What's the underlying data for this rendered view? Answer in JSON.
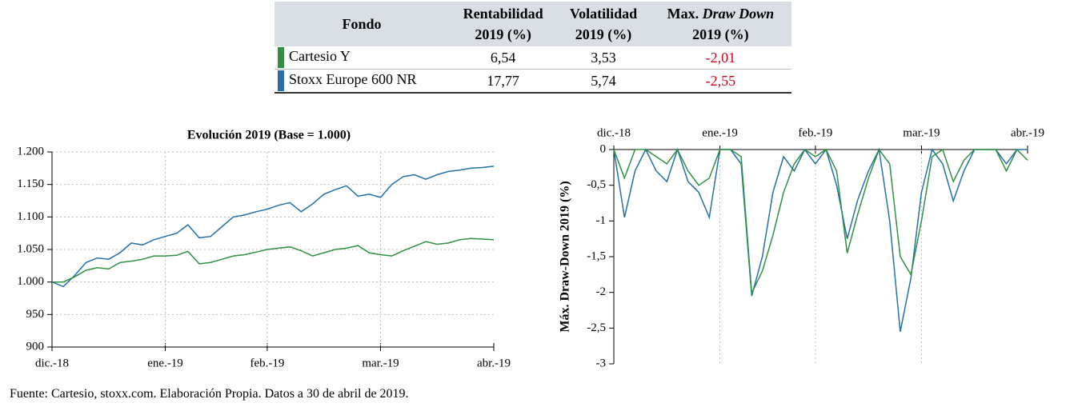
{
  "table": {
    "header": [
      [
        "Fondo"
      ],
      [
        "Rentabilidad",
        "2019 (%)"
      ],
      [
        "Volatilidad",
        "2019 (%)"
      ],
      [
        "Max.",
        "Draw Down",
        "2019 (%)"
      ]
    ],
    "rows": [
      [
        "Cartesio Y",
        "6,54",
        "3,53",
        "-2,01"
      ],
      [
        "Stoxx Europe 600 NR",
        "17,77",
        "5,74",
        "-2,55"
      ]
    ],
    "row_colors": [
      "#2e9142",
      "#2470a8"
    ],
    "negative_color": "#d0021b"
  },
  "chart_data": [
    {
      "type": "line",
      "title": "Evolución  2019 (Base = 1.000)",
      "categories": [
        "dic.-18",
        null,
        null,
        null,
        null,
        null,
        null,
        null,
        null,
        null,
        "ene.-19",
        null,
        null,
        null,
        null,
        null,
        null,
        null,
        null,
        "feb.-19",
        null,
        null,
        null,
        null,
        null,
        null,
        null,
        null,
        null,
        "mar.-19",
        null,
        null,
        null,
        null,
        null,
        null,
        null,
        null,
        null,
        "abr.-19"
      ],
      "series": [
        {
          "color": "#2470a8",
          "values": [
            1000,
            993,
            1010,
            1030,
            1037,
            1035,
            1045,
            1060,
            1057,
            1065,
            1070,
            1075,
            1088,
            1068,
            1070,
            1085,
            1100,
            1103,
            1108,
            1112,
            1118,
            1122,
            1108,
            1120,
            1135,
            1142,
            1148,
            1132,
            1135,
            1130,
            1150,
            1162,
            1165,
            1158,
            1165,
            1170,
            1172,
            1175,
            1176,
            1178
          ]
        },
        {
          "color": "#2e9142",
          "values": [
            1000,
            1000,
            1008,
            1018,
            1022,
            1020,
            1030,
            1032,
            1035,
            1040,
            1040,
            1041,
            1047,
            1028,
            1030,
            1035,
            1040,
            1042,
            1046,
            1050,
            1052,
            1054,
            1048,
            1040,
            1045,
            1050,
            1052,
            1056,
            1045,
            1042,
            1040,
            1048,
            1055,
            1062,
            1058,
            1060,
            1065,
            1067,
            1066,
            1065
          ]
        }
      ],
      "ylim": [
        900,
        1200
      ],
      "yticks": [
        900,
        950,
        {
          "value": 1000,
          "label": "1.000"
        },
        {
          "value": 1050,
          "label": "1.050"
        },
        {
          "value": 1100,
          "label": "1.100"
        },
        {
          "value": 1150,
          "label": "1.150"
        },
        {
          "value": 1200,
          "label": "1.200"
        }
      ],
      "grid": "both",
      "x_axis_position": "bottom"
    },
    {
      "type": "line",
      "y_label": "Máx. Draw-Down 2019 (%)",
      "categories": [
        "dic.-18",
        null,
        null,
        null,
        null,
        null,
        null,
        null,
        null,
        null,
        "ene.-19",
        null,
        null,
        null,
        null,
        null,
        null,
        null,
        null,
        "feb.-19",
        null,
        null,
        null,
        null,
        null,
        null,
        null,
        null,
        null,
        "mar.-19",
        null,
        null,
        null,
        null,
        null,
        null,
        null,
        null,
        null,
        "abr.-19"
      ],
      "series": [
        {
          "color": "#2470a8",
          "values": [
            0,
            -0.95,
            -0.3,
            0,
            -0.3,
            -0.45,
            0,
            -0.45,
            -0.6,
            -0.95,
            0,
            0,
            -0.2,
            -2.05,
            -1.5,
            -0.6,
            -0.1,
            -0.3,
            0,
            -0.2,
            0,
            -0.5,
            -1.25,
            -0.7,
            -0.3,
            0,
            -1.0,
            -2.55,
            -1.8,
            -0.6,
            0,
            -0.2,
            -0.72,
            -0.3,
            0,
            0,
            0,
            -0.2,
            0,
            0
          ]
        },
        {
          "color": "#2e9142",
          "values": [
            0,
            -0.4,
            0,
            0,
            -0.1,
            -0.2,
            0,
            -0.3,
            -0.5,
            -0.4,
            0,
            0,
            -0.1,
            -2.01,
            -1.7,
            -1.2,
            -0.6,
            -0.2,
            0,
            -0.1,
            0,
            -0.3,
            -1.45,
            -0.9,
            -0.4,
            0,
            -0.2,
            -1.5,
            -1.75,
            -1.0,
            -0.1,
            0,
            -0.45,
            -0.15,
            0,
            0,
            0,
            -0.3,
            0,
            -0.15
          ]
        }
      ],
      "ylim": [
        -3,
        0
      ],
      "yticks": [
        -3,
        {
          "value": -2.5,
          "label": "-2,5"
        },
        -2,
        {
          "value": -1.5,
          "label": "-1,5"
        },
        -1,
        {
          "value": -0.5,
          "label": "-0,5"
        },
        0
      ],
      "grid": "x",
      "x_axis_position": "top"
    }
  ],
  "footnote": "Fuente: Cartesio, stoxx.com. Elaboración Propia. Datos a 30 de abril de 2019."
}
